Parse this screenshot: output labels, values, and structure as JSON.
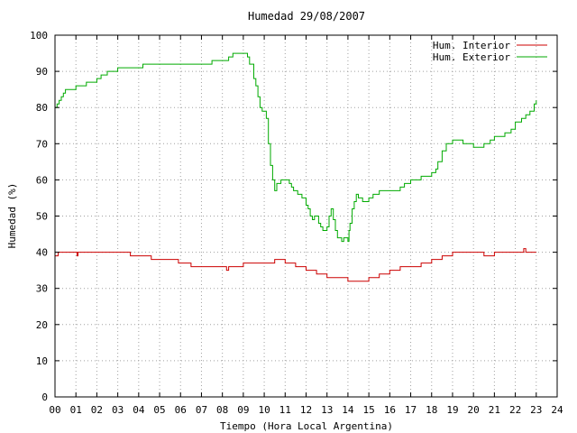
{
  "chart_data": {
    "type": "line",
    "title": "Humedad 29/08/2007",
    "xlabel": "Tiempo (Hora Local Argentina)",
    "ylabel": "Humedad (%)",
    "xlim": [
      0,
      24
    ],
    "ylim": [
      0,
      100
    ],
    "grid": true,
    "legend_position": "top-right",
    "xticks": [
      "00",
      "01",
      "02",
      "03",
      "04",
      "05",
      "06",
      "07",
      "08",
      "09",
      "10",
      "11",
      "12",
      "13",
      "14",
      "15",
      "16",
      "17",
      "18",
      "19",
      "20",
      "21",
      "22",
      "23",
      "24"
    ],
    "yticks": [
      "0",
      "10",
      "20",
      "30",
      "40",
      "50",
      "60",
      "70",
      "80",
      "90",
      "100"
    ],
    "series": [
      {
        "name": "Hum. Interior",
        "color": "#cc0000",
        "x": [
          0,
          0.1,
          0.15,
          1.0,
          1.05,
          1.1,
          2.5,
          3.0,
          3.5,
          3.6,
          4.5,
          4.6,
          5.5,
          5.9,
          6.0,
          6.4,
          6.5,
          7.0,
          8.0,
          8.2,
          8.3,
          9.0,
          9.5,
          10.5,
          11.0,
          11.5,
          11.8,
          12.0,
          12.3,
          12.5,
          12.8,
          13.0,
          13.5,
          14.0,
          14.5,
          15.0,
          15.5,
          16.0,
          16.5,
          17.0,
          17.5,
          18.0,
          18.3,
          18.5,
          19.0,
          19.5,
          20.0,
          20.5,
          21.0,
          21.5,
          22.0,
          22.3,
          22.4,
          22.5,
          23.0
        ],
        "y": [
          39,
          39,
          40,
          40,
          39,
          40,
          40,
          40,
          40,
          39,
          39,
          38,
          38,
          37,
          37,
          37,
          36,
          36,
          36,
          35,
          36,
          37,
          37,
          38,
          37,
          36,
          36,
          35,
          35,
          34,
          34,
          33,
          33,
          32,
          32,
          33,
          34,
          35,
          36,
          36,
          37,
          38,
          38,
          39,
          40,
          40,
          40,
          39,
          40,
          40,
          40,
          40,
          41,
          40,
          40
        ]
      },
      {
        "name": "Hum. Exterior",
        "color": "#00aa00",
        "x": [
          0,
          0.1,
          0.2,
          0.3,
          0.4,
          0.5,
          0.6,
          1.0,
          1.2,
          1.5,
          2.0,
          2.2,
          2.5,
          3.0,
          3.5,
          4.0,
          4.2,
          4.5,
          5.0,
          5.5,
          5.8,
          6.0,
          6.5,
          7.0,
          7.5,
          8.0,
          8.3,
          8.5,
          8.8,
          9.0,
          9.2,
          9.3,
          9.5,
          9.6,
          9.7,
          9.8,
          9.9,
          10.0,
          10.1,
          10.2,
          10.3,
          10.4,
          10.5,
          10.6,
          10.8,
          11.0,
          11.2,
          11.3,
          11.4,
          11.6,
          11.8,
          12.0,
          12.1,
          12.2,
          12.3,
          12.4,
          12.5,
          12.6,
          12.7,
          12.8,
          13.0,
          13.1,
          13.2,
          13.3,
          13.4,
          13.5,
          13.7,
          13.8,
          14.0,
          14.05,
          14.1,
          14.2,
          14.3,
          14.4,
          14.5,
          14.7,
          15.0,
          15.2,
          15.5,
          15.8,
          16.0,
          16.3,
          16.5,
          16.7,
          17.0,
          17.2,
          17.5,
          17.8,
          18.0,
          18.2,
          18.3,
          18.5,
          18.7,
          19.0,
          19.3,
          19.5,
          20.0,
          20.5,
          20.8,
          21.0,
          21.5,
          21.8,
          22.0,
          22.3,
          22.5,
          22.7,
          22.9,
          23.0
        ],
        "y": [
          80,
          81,
          82,
          83,
          84,
          85,
          85,
          86,
          86,
          87,
          88,
          89,
          90,
          91,
          91,
          91,
          92,
          92,
          92,
          92,
          92,
          92,
          92,
          92,
          93,
          93,
          94,
          95,
          95,
          95,
          94,
          92,
          88,
          86,
          83,
          80,
          79,
          79,
          77,
          70,
          64,
          60,
          57,
          59,
          60,
          60,
          59,
          58,
          57,
          56,
          55,
          53,
          52,
          50,
          49,
          50,
          50,
          48,
          47,
          46,
          47,
          50,
          52,
          49,
          46,
          44,
          43,
          44,
          43,
          46,
          48,
          52,
          54,
          56,
          55,
          54,
          55,
          56,
          57,
          57,
          57,
          57,
          58,
          59,
          60,
          60,
          61,
          61,
          62,
          63,
          65,
          68,
          70,
          71,
          71,
          70,
          69,
          70,
          71,
          72,
          73,
          74,
          76,
          77,
          78,
          79,
          81,
          82
        ]
      }
    ]
  }
}
